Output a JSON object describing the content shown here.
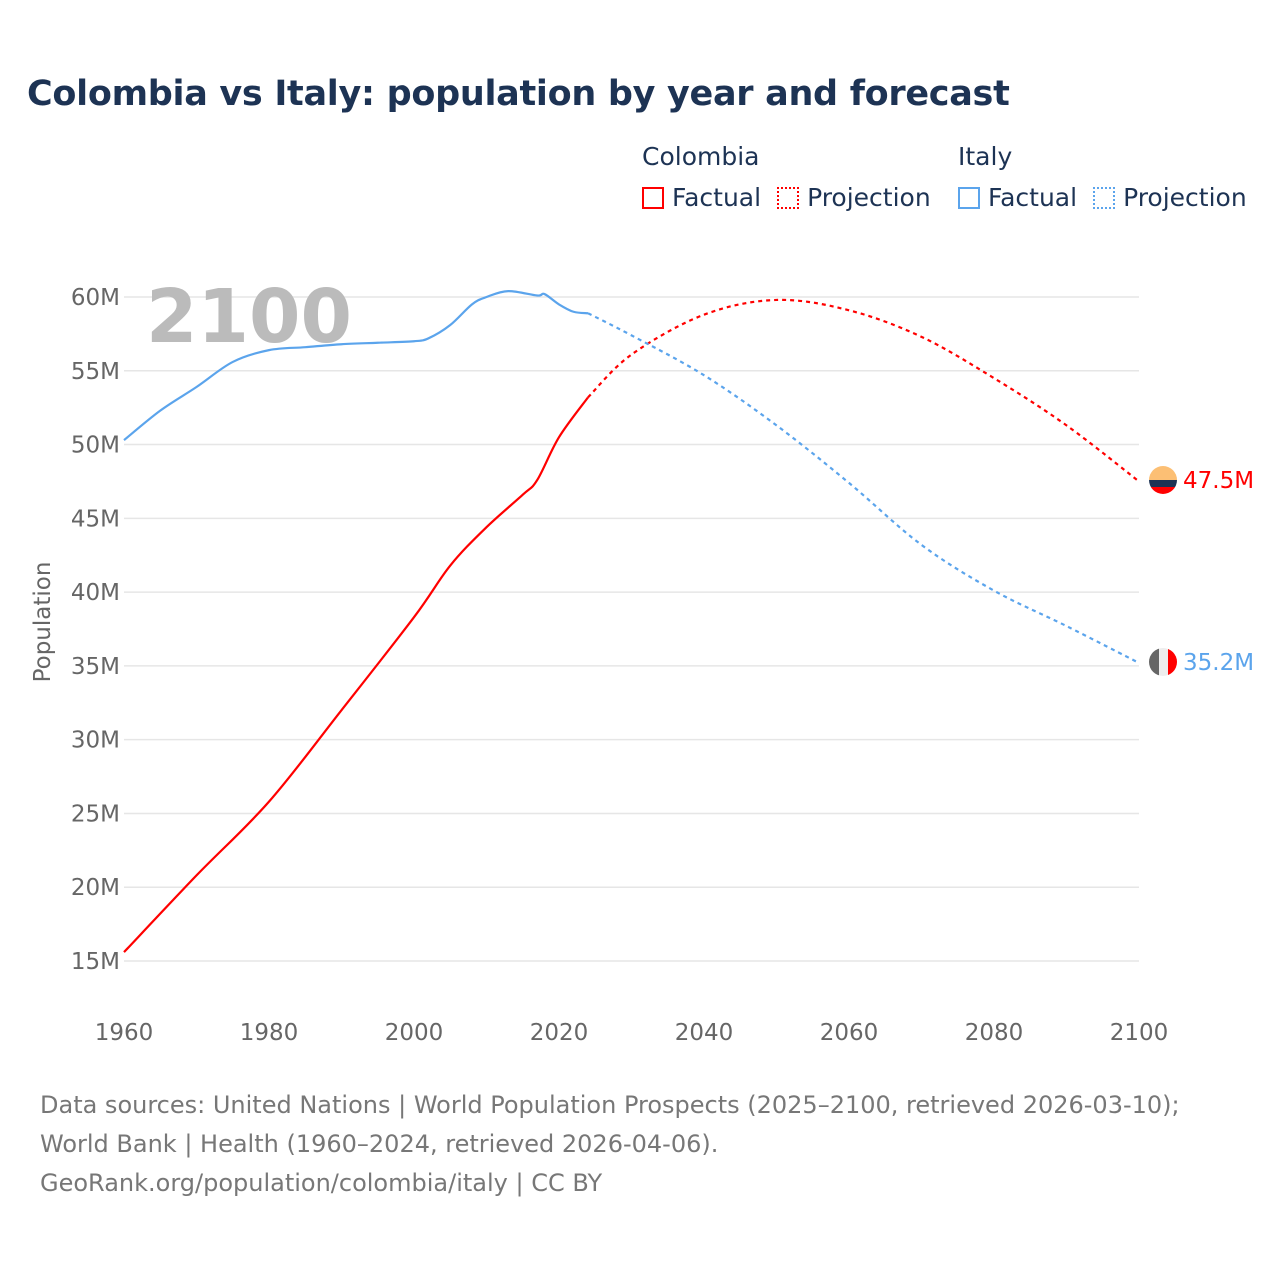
{
  "chart_data": {
    "type": "line",
    "title": "Colombia vs Italy: population by year and forecast",
    "xlabel": "",
    "ylabel": "Population",
    "xlim": [
      1960,
      2100
    ],
    "ylim": [
      15,
      60
    ],
    "x_ticks": [
      "1960",
      "1980",
      "2000",
      "2020",
      "2040",
      "2060",
      "2080",
      "2100"
    ],
    "y_ticks": [
      "15M",
      "20M",
      "25M",
      "30M",
      "35M",
      "40M",
      "45M",
      "50M",
      "55M",
      "60M"
    ],
    "grid": true,
    "year_overlay": "2100",
    "legend": {
      "placement": "top-right",
      "groups": [
        {
          "name": "Colombia",
          "factual": "Factual",
          "projection": "Projection"
        },
        {
          "name": "Italy",
          "factual": "Factual",
          "projection": "Projection"
        }
      ]
    },
    "series": [
      {
        "name": "Colombia",
        "color": "#ff0000",
        "end_label": "47.5M",
        "factual": {
          "x": [
            1960,
            1970,
            1980,
            1990,
            2000,
            2005,
            2010,
            2015,
            2017,
            2020,
            2024
          ],
          "y": [
            15.6,
            20.8,
            25.8,
            32.0,
            38.3,
            41.8,
            44.4,
            46.6,
            47.6,
            50.5,
            53.2
          ]
        },
        "projection": {
          "x": [
            2024,
            2030,
            2040,
            2050,
            2060,
            2070,
            2080,
            2090,
            2100
          ],
          "y": [
            53.2,
            56.1,
            58.8,
            59.8,
            59.1,
            57.3,
            54.5,
            51.3,
            47.5
          ]
        }
      },
      {
        "name": "Italy",
        "color": "#5ba4ec",
        "end_label": "35.2M",
        "factual": {
          "x": [
            1960,
            1965,
            1970,
            1975,
            1980,
            1985,
            1990,
            1995,
            2000,
            2002,
            2005,
            2008,
            2010,
            2013,
            2017,
            2018,
            2020,
            2022,
            2024
          ],
          "y": [
            50.3,
            52.3,
            53.9,
            55.6,
            56.4,
            56.6,
            56.8,
            56.9,
            57.0,
            57.2,
            58.1,
            59.5,
            60.0,
            60.4,
            60.1,
            60.2,
            59.5,
            59.0,
            58.9
          ]
        },
        "projection": {
          "x": [
            2024,
            2030,
            2040,
            2050,
            2060,
            2070,
            2080,
            2090,
            2100
          ],
          "y": [
            58.9,
            57.4,
            54.7,
            51.3,
            47.4,
            43.2,
            40.1,
            37.7,
            35.2
          ]
        }
      }
    ]
  },
  "footer": {
    "sources": "Data sources: United Nations | World Population Prospects (2025–2100, retrieved 2026-03-10); World Bank | Health (1960–2024, retrieved 2026-04-06).",
    "attribution": "GeoRank.org/population/colombia/italy | CC BY"
  }
}
